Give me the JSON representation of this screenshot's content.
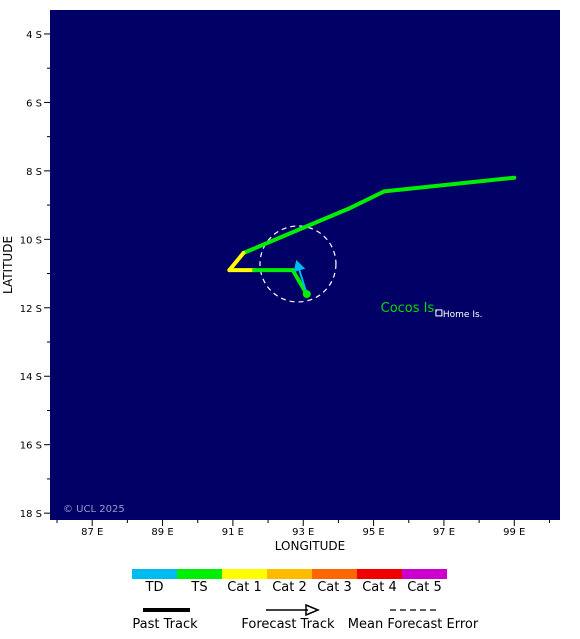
{
  "map": {
    "background_color": "#000066",
    "xaxis": {
      "title": "LONGITUDE",
      "range": [
        85.8,
        100.3
      ],
      "ticks": [
        {
          "value": 87,
          "label": "87 E"
        },
        {
          "value": 89,
          "label": "89 E"
        },
        {
          "value": 91,
          "label": "91 E"
        },
        {
          "value": 93,
          "label": "93 E"
        },
        {
          "value": 95,
          "label": "95 E"
        },
        {
          "value": 97,
          "label": "97 E"
        },
        {
          "value": 99,
          "label": "99 E"
        }
      ]
    },
    "yaxis": {
      "title": "LATITUDE",
      "range": [
        -18.2,
        -3.3
      ],
      "ticks": [
        {
          "value": -4,
          "label": "4 S"
        },
        {
          "value": -6,
          "label": "6 S"
        },
        {
          "value": -8,
          "label": "8 S"
        },
        {
          "value": -10,
          "label": "10 S"
        },
        {
          "value": -12,
          "label": "12 S"
        },
        {
          "value": -14,
          "label": "14 S"
        },
        {
          "value": -16,
          "label": "16 S"
        },
        {
          "value": -18,
          "label": "18 S"
        }
      ]
    },
    "copyright": "© UCL 2025",
    "place_label": {
      "text": "Cocos Is.",
      "lon": 96.9,
      "lat": -12.0,
      "color": "#00dd00"
    },
    "town_label": {
      "text": "Home Is.",
      "lon": 96.8,
      "lat": -12.15
    }
  },
  "chart_data": {
    "type": "track_map",
    "past_track": [
      {
        "lon": 99.0,
        "lat": -8.2,
        "category": "TS"
      },
      {
        "lon": 95.3,
        "lat": -8.6,
        "category": "TS"
      },
      {
        "lon": 94.3,
        "lat": -9.1,
        "category": "TS"
      },
      {
        "lon": 91.3,
        "lat": -10.4,
        "category": "Cat 1"
      },
      {
        "lon": 90.9,
        "lat": -10.9,
        "category": "Cat 1"
      },
      {
        "lon": 91.6,
        "lat": -10.9,
        "category": "TS"
      },
      {
        "lon": 92.7,
        "lat": -10.9,
        "category": "TS"
      },
      {
        "lon": 93.1,
        "lat": -11.6,
        "category": "TS"
      }
    ],
    "current_position": {
      "lon": 93.1,
      "lat": -11.6,
      "category": "TS"
    },
    "forecast_track": [
      {
        "lon": 93.1,
        "lat": -11.6
      },
      {
        "lon": 92.8,
        "lat": -10.6
      }
    ],
    "mean_forecast_error_circle": {
      "lon": 92.85,
      "lat": -10.72,
      "radius_deg": 1.08
    }
  },
  "legend": {
    "categories": [
      {
        "label": "TD",
        "color": "#00bbee"
      },
      {
        "label": "TS",
        "color": "#00ee00"
      },
      {
        "label": "Cat 1",
        "color": "#ffff00"
      },
      {
        "label": "Cat 2",
        "color": "#ffbb00"
      },
      {
        "label": "Cat 3",
        "color": "#ff6600"
      },
      {
        "label": "Cat 4",
        "color": "#ee0000"
      },
      {
        "label": "Cat 5",
        "color": "#cc00cc"
      }
    ],
    "past_track_label": "Past Track",
    "forecast_track_label": "Forecast Track",
    "error_label": "Mean Forecast Error"
  }
}
